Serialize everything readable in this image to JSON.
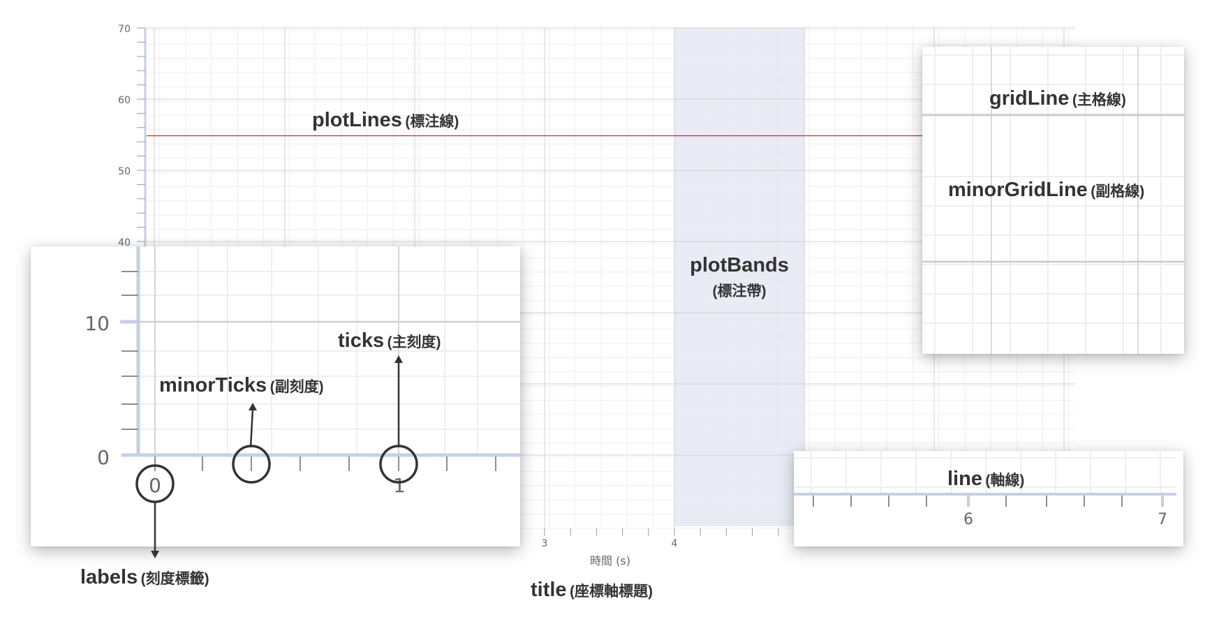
{
  "main_chart": {
    "x_axis": {
      "tick_labels": [
        "3",
        "4"
      ],
      "title": "時間 (s)"
    },
    "y_axis": {
      "tick_labels": [
        "40",
        "50",
        "60",
        "70"
      ]
    },
    "plot_line_color": "#e0201c",
    "plot_band_color": "#e8ebf5"
  },
  "annotations": {
    "plotLines": {
      "en": "plotLines",
      "zh": "(標注線)"
    },
    "plotBands": {
      "en": "plotBands",
      "zh": "(標注帶)"
    },
    "gridLine": {
      "en": "gridLine",
      "zh": "(主格線)"
    },
    "minorGridLine": {
      "en": "minorGridLine",
      "zh": "(副格線)"
    },
    "ticks": {
      "en": "ticks",
      "zh": "(主刻度)"
    },
    "minorTicks": {
      "en": "minorTicks",
      "zh": "(副刻度)"
    },
    "labels": {
      "en": "labels",
      "zh": "(刻度標籤)"
    },
    "line": {
      "en": "line",
      "zh": "(軸線)"
    },
    "title": {
      "en": "title",
      "zh": "(座標軸標題)"
    }
  },
  "zoom_ticks": {
    "y_tick_labels": [
      "10",
      "0"
    ],
    "x_tick_labels": [
      "0",
      "1"
    ]
  },
  "zoom_line": {
    "x_tick_labels": [
      "6",
      "7"
    ]
  },
  "colors": {
    "axis_line": "#c5cfe6",
    "grid_major": "#d0d0d0",
    "grid_minor": "#eeeeee",
    "annotation_text": "#333333"
  }
}
